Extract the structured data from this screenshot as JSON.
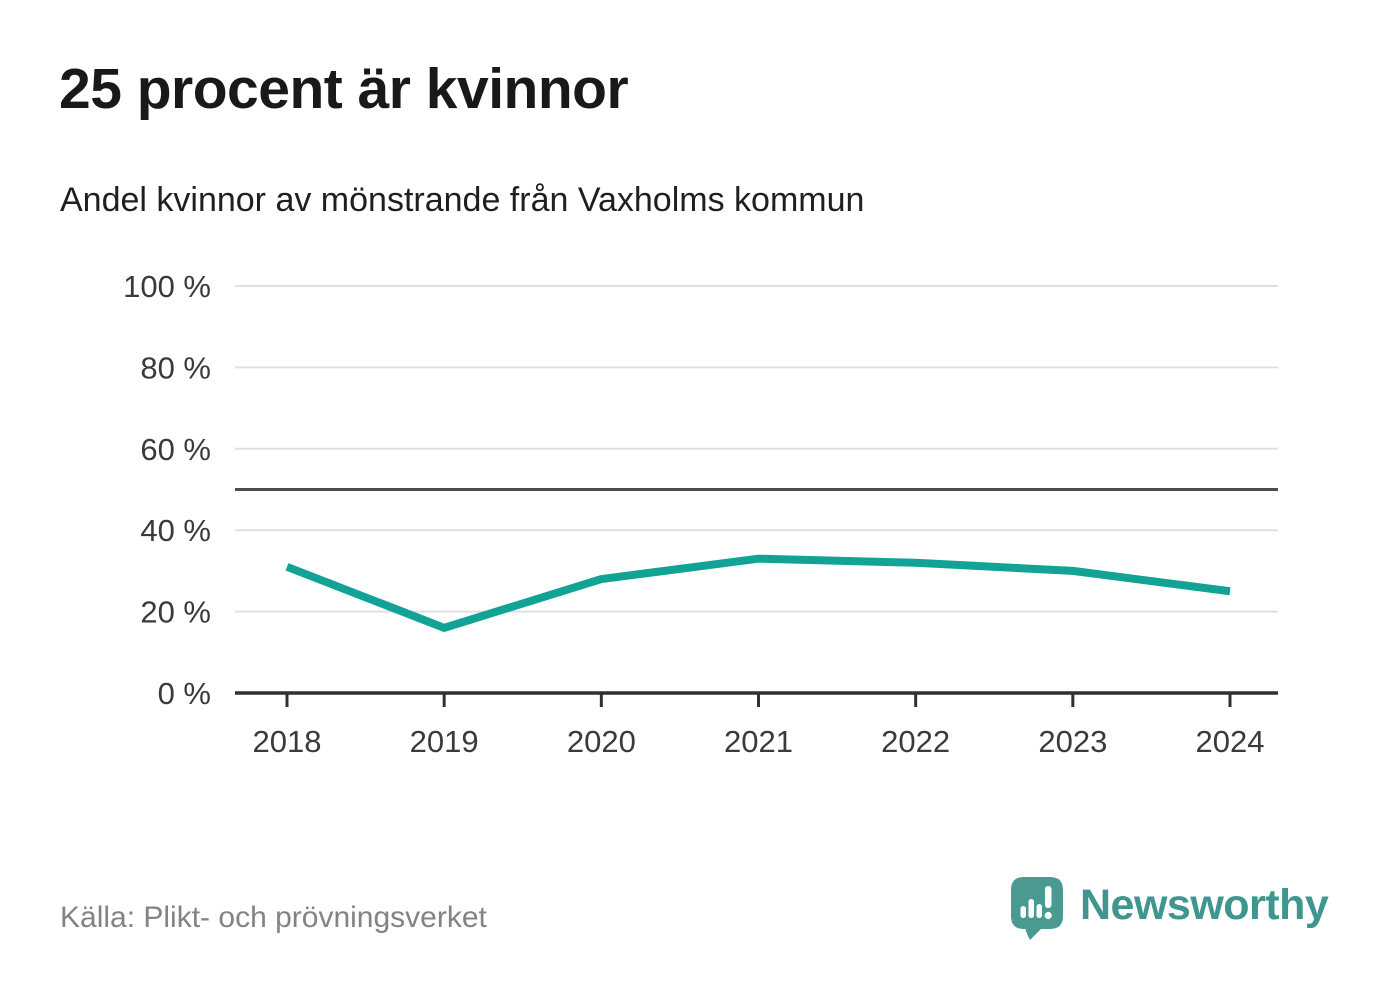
{
  "header": {
    "title": "25 procent är kvinnor",
    "subtitle": "Andel kvinnor av mönstrande från Vaxholms kommun"
  },
  "chart_data": {
    "type": "line",
    "title": "25 procent är kvinnor",
    "subtitle": "Andel kvinnor av mönstrande från Vaxholms kommun",
    "x": [
      2018,
      2019,
      2020,
      2021,
      2022,
      2023,
      2024
    ],
    "series": [
      {
        "name": "Andel kvinnor av mönstrande",
        "values": [
          31,
          16,
          28,
          33,
          32,
          30,
          25
        ]
      }
    ],
    "unit": "%",
    "ylim": [
      0,
      100
    ],
    "y_ticks": [
      0,
      20,
      40,
      60,
      80,
      100
    ],
    "y_tick_labels": [
      "0 %",
      "20 %",
      "40 %",
      "60 %",
      "80 %",
      "100 %"
    ],
    "x_tick_labels": [
      "2018",
      "2019",
      "2020",
      "2021",
      "2022",
      "2023",
      "2024"
    ],
    "reference_line": 50,
    "grid": "horizontal",
    "legend": "none",
    "line_color": "#12a296",
    "axis_color": "#303030",
    "tick_label_color": "#3a3a3a",
    "gridline_color": "#e0e0e0",
    "reference_line_color": "#4d4d4d"
  },
  "footer": {
    "source": "Källa: Plikt- och prövningsverket",
    "brand": "Newsworthy",
    "brand_color": "#3f968e",
    "logo_icon": "speech-bubble-bar-chart-exclamation"
  }
}
